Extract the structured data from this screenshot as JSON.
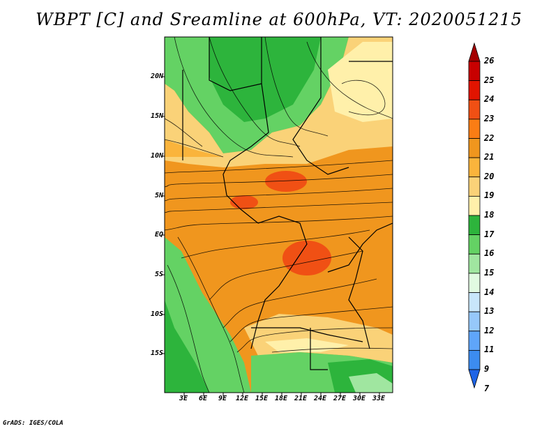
{
  "title": "WBPT [C] and Sreamline at 600hPa, VT: 2020051215",
  "credit": "GrADS: IGES/COLA",
  "map": {
    "lat_range": [
      -20,
      25
    ],
    "lon_range": [
      0,
      35
    ],
    "lat_labels": [
      "20N",
      "15N",
      "10N",
      "5N",
      "EQ",
      "5S",
      "10S",
      "15S"
    ],
    "lon_labels": [
      "3E",
      "6E",
      "9E",
      "12E",
      "15E",
      "18E",
      "21E",
      "24E",
      "27E",
      "30E",
      "33E"
    ]
  },
  "colorbar": {
    "labels": [
      "26",
      "25",
      "24",
      "23",
      "22",
      "21",
      "20",
      "19",
      "18",
      "17",
      "16",
      "15",
      "14",
      "13",
      "12",
      "11",
      "9",
      "7"
    ],
    "colors": [
      "#a50000",
      "#c80000",
      "#e11400",
      "#f05014",
      "#fa7d14",
      "#f0961e",
      "#fab43c",
      "#fad278",
      "#fff0aa",
      "#2db43c",
      "#64d264",
      "#a0e6a0",
      "#e1fae1",
      "#c8e6fa",
      "#96c8fa",
      "#5fa5fa",
      "#3c8cf0",
      "#1e64e6"
    ]
  }
}
